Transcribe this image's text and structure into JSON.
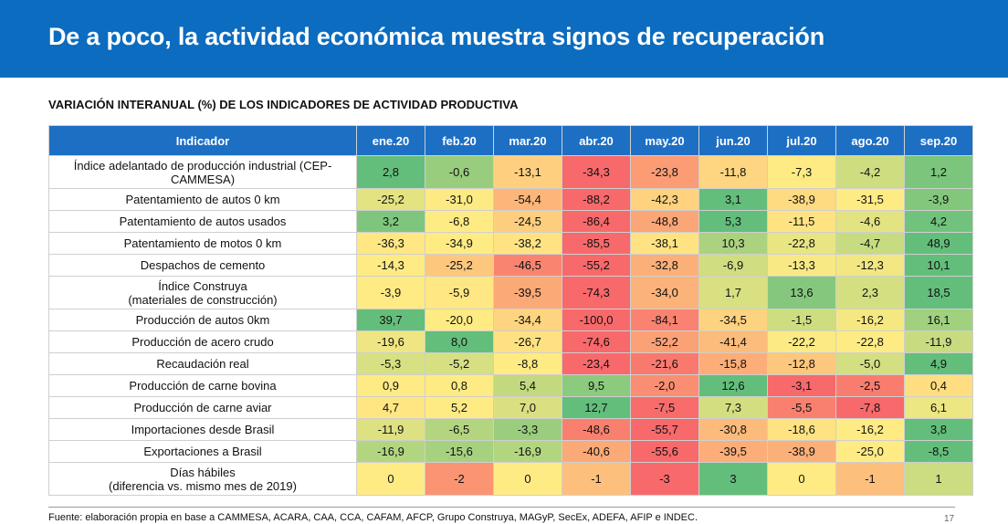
{
  "title": "De a poco, la actividad económica muestra signos de recuperación",
  "subtitle": "VARIACIÓN INTERANUAL (%) DE LOS INDICADORES DE ACTIVIDAD PRODUCTIVA",
  "table": {
    "header_first": "Indicador",
    "months": [
      "ene.20",
      "feb.20",
      "mar.20",
      "abr.20",
      "may.20",
      "jun.20",
      "jul.20",
      "ago.20",
      "sep.20"
    ],
    "color_scale": {
      "low": "#f8696b",
      "mid": "#ffeb84",
      "high": "#63be7b"
    },
    "rows": [
      {
        "label": "Índice adelantado de producción industrial (CEP-CAMMESA)",
        "values": [
          "2,8",
          "-0,6",
          "-13,1",
          "-34,3",
          "-23,8",
          "-11,8",
          "-7,3",
          "-4,2",
          "1,2"
        ]
      },
      {
        "label": "Patentamiento de autos 0 km",
        "values": [
          "-25,2",
          "-31,0",
          "-54,4",
          "-88,2",
          "-42,3",
          "3,1",
          "-38,9",
          "-31,5",
          "-3,9"
        ]
      },
      {
        "label": "Patentamiento de autos usados",
        "values": [
          "3,2",
          "-6,8",
          "-24,5",
          "-86,4",
          "-48,8",
          "5,3",
          "-11,5",
          "-4,6",
          "4,2"
        ]
      },
      {
        "label": "Patentamiento de motos 0 km",
        "values": [
          "-36,3",
          "-34,9",
          "-38,2",
          "-85,5",
          "-38,1",
          "10,3",
          "-22,8",
          "-4,7",
          "48,9"
        ]
      },
      {
        "label": "Despachos de cemento",
        "values": [
          "-14,3",
          "-25,2",
          "-46,5",
          "-55,2",
          "-32,8",
          "-6,9",
          "-13,3",
          "-12,3",
          "10,1"
        ]
      },
      {
        "label": "Índice Construya\n(materiales de construcción)",
        "values": [
          "-3,9",
          "-5,9",
          "-39,5",
          "-74,3",
          "-34,0",
          "1,7",
          "13,6",
          "2,3",
          "18,5"
        ]
      },
      {
        "label": "Producción de autos 0km",
        "values": [
          "39,7",
          "-20,0",
          "-34,4",
          "-100,0",
          "-84,1",
          "-34,5",
          "-1,5",
          "-16,2",
          "16,1"
        ]
      },
      {
        "label": "Producción de acero crudo",
        "values": [
          "-19,6",
          "8,0",
          "-26,7",
          "-74,6",
          "-52,2",
          "-41,4",
          "-22,2",
          "-22,8",
          "-11,9"
        ]
      },
      {
        "label": "Recaudación real",
        "values": [
          "-5,3",
          "-5,2",
          "-8,8",
          "-23,4",
          "-21,6",
          "-15,8",
          "-12,8",
          "-5,0",
          "4,9"
        ]
      },
      {
        "label": "Producción de carne bovina",
        "values": [
          "0,9",
          "0,8",
          "5,4",
          "9,5",
          "-2,0",
          "12,6",
          "-3,1",
          "-2,5",
          "0,4"
        ]
      },
      {
        "label": "Producción de carne aviar",
        "values": [
          "4,7",
          "5,2",
          "7,0",
          "12,7",
          "-7,5",
          "7,3",
          "-5,5",
          "-7,8",
          "6,1"
        ]
      },
      {
        "label": "Importaciones desde Brasil",
        "values": [
          "-11,9",
          "-6,5",
          "-3,3",
          "-48,6",
          "-55,7",
          "-30,8",
          "-18,6",
          "-16,2",
          "3,8"
        ]
      },
      {
        "label": "Exportaciones a Brasil",
        "values": [
          "-16,9",
          "-15,6",
          "-16,9",
          "-40,6",
          "-55,6",
          "-39,5",
          "-38,9",
          "-25,0",
          "-8,5"
        ]
      },
      {
        "label": "Días hábiles\n(diferencia vs. mismo mes de 2019)",
        "values": [
          "0",
          "-2",
          "0",
          "-1",
          "-3",
          "3",
          "0",
          "-1",
          "1"
        ]
      }
    ]
  },
  "footer": "Fuente: elaboración propia en base a CAMMESA, ACARA, CAA, CCA, CAFAM, AFCP, Grupo Construya, MAGyP, SecEx, ADEFA, AFIP e INDEC.",
  "page_number": "17"
}
